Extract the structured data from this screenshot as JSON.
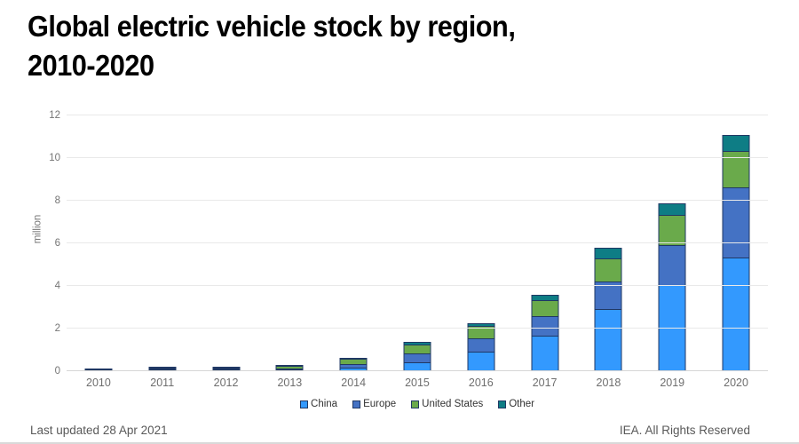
{
  "title": {
    "line1": "Global electric vehicle stock by region,",
    "line2": "2010-2020"
  },
  "footer": {
    "left": "Last updated 28 Apr 2021",
    "right": "IEA. All Rights Reserved"
  },
  "colors": {
    "china": "#3399fe",
    "europe": "#4472c4",
    "united_states": "#6aaa4b",
    "other": "#0e7d85",
    "bar_border": "#203864"
  },
  "chart_data": {
    "type": "bar",
    "stacked": true,
    "title": "Global electric vehicle stock by region, 2010-2020",
    "xlabel": "",
    "ylabel": "million",
    "ylim": [
      0,
      12
    ],
    "yticks": [
      0,
      2,
      4,
      6,
      8,
      10,
      12
    ],
    "grid": true,
    "legend_position": "bottom",
    "categories": [
      "2010",
      "2011",
      "2012",
      "2013",
      "2014",
      "2015",
      "2016",
      "2017",
      "2018",
      "2019",
      "2020"
    ],
    "series": [
      {
        "name": "China",
        "color": "#3399fe",
        "values": [
          0.01,
          0.02,
          0.03,
          0.08,
          0.15,
          0.4,
          0.91,
          1.65,
          2.9,
          4.05,
          5.35
        ]
      },
      {
        "name": "Europe",
        "color": "#4472c4",
        "values": [
          0.0,
          0.01,
          0.04,
          0.1,
          0.2,
          0.45,
          0.65,
          0.95,
          1.32,
          1.92,
          3.35
        ]
      },
      {
        "name": "United States",
        "color": "#6aaa4b",
        "values": [
          0.0,
          0.02,
          0.07,
          0.17,
          0.3,
          0.45,
          0.64,
          0.8,
          1.11,
          1.45,
          1.75
        ]
      },
      {
        "name": "Other",
        "color": "#0e7d85",
        "values": [
          0.01,
          0.02,
          0.06,
          0.05,
          0.1,
          0.16,
          0.17,
          0.3,
          0.53,
          0.6,
          0.8
        ]
      }
    ],
    "totals": [
      0.02,
      0.07,
      0.2,
      0.4,
      0.75,
      1.46,
      2.37,
      3.7,
      5.86,
      8.02,
      11.25
    ]
  }
}
